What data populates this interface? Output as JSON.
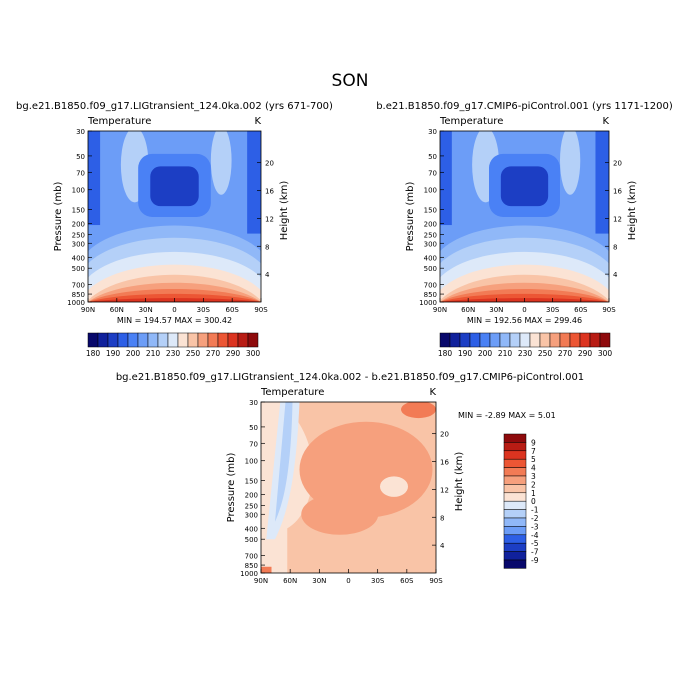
{
  "figure": {
    "title": "SON"
  },
  "chart_data": [
    {
      "type": "heatmap",
      "title": "bg.e21.B1850.f09_g17.LIGtransient_124.0ka.002 (yrs 671-700)",
      "left_label": "Temperature",
      "right_label": "K",
      "xlabel": "",
      "ylabel": "Pressure (mb)",
      "y2label": "Height (km)",
      "x_ticks": [
        "90N",
        "60N",
        "30N",
        "0",
        "30S",
        "60S",
        "90S"
      ],
      "y_ticks": [
        "30",
        "50",
        "70",
        "100",
        "150",
        "200",
        "250",
        "300",
        "400",
        "500",
        "700",
        "850",
        "1000"
      ],
      "y2_ticks": [
        "20",
        "16",
        "12",
        "8",
        "4"
      ],
      "ylim": [
        1000,
        30
      ],
      "stats": "MIN = 194.57   MAX = 300.42",
      "min": 194.57,
      "max": 300.42
    },
    {
      "type": "heatmap",
      "title": "b.e21.B1850.f09_g17.CMIP6-piControl.001 (yrs 1171-1200)",
      "left_label": "Temperature",
      "right_label": "K",
      "xlabel": "",
      "ylabel": "Pressure (mb)",
      "y2label": "Height (km)",
      "x_ticks": [
        "90N",
        "60N",
        "30N",
        "0",
        "30S",
        "60S",
        "90S"
      ],
      "y_ticks": [
        "30",
        "50",
        "70",
        "100",
        "150",
        "200",
        "250",
        "300",
        "400",
        "500",
        "700",
        "850",
        "1000"
      ],
      "y2_ticks": [
        "20",
        "16",
        "12",
        "8",
        "4"
      ],
      "ylim": [
        1000,
        30
      ],
      "stats": "MIN = 192.56   MAX = 299.46",
      "min": 192.56,
      "max": 299.46
    },
    {
      "type": "heatmap",
      "title": "bg.e21.B1850.f09_g17.LIGtransient_124.0ka.002 - b.e21.B1850.f09_g17.CMIP6-piControl.001",
      "left_label": "Temperature",
      "right_label": "K",
      "xlabel": "",
      "ylabel": "Pressure (mb)",
      "y2label": "Height (km)",
      "x_ticks": [
        "90N",
        "60N",
        "30N",
        "0",
        "30S",
        "60S",
        "90S"
      ],
      "y_ticks": [
        "30",
        "50",
        "70",
        "100",
        "150",
        "200",
        "250",
        "300",
        "400",
        "500",
        "700",
        "850",
        "1000"
      ],
      "y2_ticks": [
        "20",
        "16",
        "12",
        "8",
        "4"
      ],
      "ylim": [
        1000,
        30
      ],
      "stats": "MIN = -2.89   MAX = 5.01",
      "min": -2.89,
      "max": 5.01
    }
  ],
  "colorbars": {
    "absolute": {
      "labels": [
        "180",
        "190",
        "200",
        "210",
        "230",
        "250",
        "270",
        "290",
        "300"
      ],
      "colors": [
        "#08086b",
        "#10219c",
        "#1c3ec4",
        "#2d5fe6",
        "#4a81f5",
        "#6c9df7",
        "#90b8f8",
        "#b4d0f8",
        "#dde9f9",
        "#fbe3d4",
        "#f9c4a7",
        "#f6a07d",
        "#f27b55",
        "#ec5634",
        "#dc3420",
        "#b81c14",
        "#8e0a0c"
      ]
    },
    "difference": {
      "labels": [
        "9",
        "7",
        "5",
        "4",
        "3",
        "2",
        "1",
        "0",
        "-1",
        "-2",
        "-3",
        "-4",
        "-5",
        "-7",
        "-9"
      ],
      "colors": [
        "#8e0a0c",
        "#b81c14",
        "#dc3420",
        "#ec5634",
        "#f27b55",
        "#f6a07d",
        "#f9c4a7",
        "#fbe3d4",
        "#dde9f9",
        "#b4d0f8",
        "#90b8f8",
        "#6c9df7",
        "#2d5fe6",
        "#1c3ec4",
        "#10219c",
        "#08086b"
      ]
    }
  }
}
